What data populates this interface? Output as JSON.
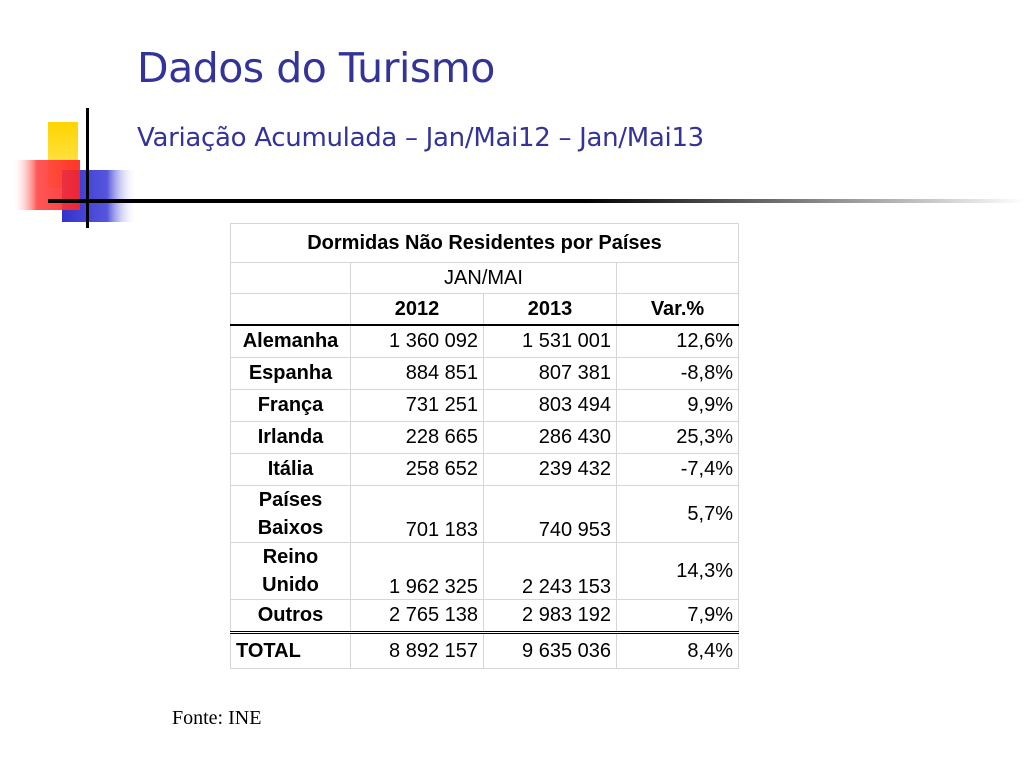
{
  "slide": {
    "title": "Dados do Turismo",
    "subtitle": "Variação Acumulada – Jan/Mai12 – Jan/Mai13",
    "source": "Fonte: INE"
  },
  "colors": {
    "title": "#333399",
    "accent_yellow": "#ffcc00",
    "accent_red": "#ff3333",
    "accent_blue": "#3333cc",
    "rule": "#000000"
  },
  "table": {
    "heading": "Dormidas Não Residentes por Países",
    "period": "JAN/MAI",
    "columns": [
      "2012",
      "2013",
      "Var.%"
    ],
    "rows": [
      {
        "country": "Alemanha",
        "y2012": "1 360 092",
        "y2013": "1 531 001",
        "var": "12,6%"
      },
      {
        "country": "Espanha",
        "y2012": "884 851",
        "y2013": "807 381",
        "var": "-8,8%"
      },
      {
        "country": "França",
        "y2012": "731 251",
        "y2013": "803 494",
        "var": "9,9%"
      },
      {
        "country": "Irlanda",
        "y2012": "228 665",
        "y2013": "286 430",
        "var": "25,3%"
      },
      {
        "country": "Itália",
        "y2012": "258 652",
        "y2013": "239 432",
        "var": "-7,4%"
      },
      {
        "country": "Países Baixos",
        "y2012": "701 183",
        "y2013": "740 953",
        "var": "5,7%"
      },
      {
        "country": "Reino Unido",
        "y2012": "1 962 325",
        "y2013": "2 243 153",
        "var": "14,3%"
      },
      {
        "country": "Outros",
        "y2012": "2 765 138",
        "y2013": "2 983 192",
        "var": "7,9%"
      }
    ],
    "total": {
      "label": "TOTAL",
      "y2012": "8 892 157",
      "y2013": "9 635 036",
      "var": "8,4%"
    }
  }
}
